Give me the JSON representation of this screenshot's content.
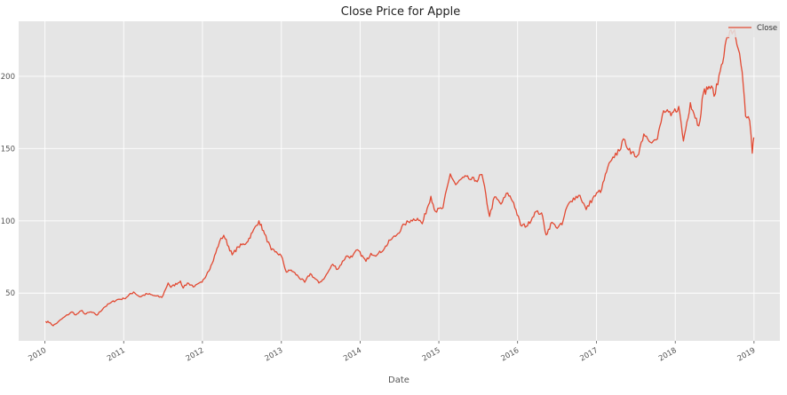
{
  "chart_data": {
    "type": "line",
    "title": "Close Price for Apple",
    "xlabel": "Date",
    "ylabel": "",
    "x_ticks": [
      "2010",
      "2011",
      "2012",
      "2013",
      "2014",
      "2015",
      "2016",
      "2017",
      "2018",
      "2019"
    ],
    "y_ticks": [
      50,
      100,
      150,
      200
    ],
    "xlim": [
      "2009-09-01",
      "2019-05-01"
    ],
    "ylim": [
      17,
      238
    ],
    "grid": true,
    "legend_position": "top-right",
    "colors": {
      "series": "#e24a33",
      "background": "#e5e5e5",
      "grid": "#ffffff"
    },
    "series": [
      {
        "name": "Close",
        "x": [
          "2010-01-04",
          "2010-01-25",
          "2010-02-08",
          "2010-03-01",
          "2010-04-01",
          "2010-05-06",
          "2010-05-25",
          "2010-06-22",
          "2010-07-06",
          "2010-08-02",
          "2010-08-30",
          "2010-10-01",
          "2010-11-01",
          "2010-12-01",
          "2011-01-03",
          "2011-02-16",
          "2011-03-16",
          "2011-04-20",
          "2011-05-16",
          "2011-06-27",
          "2011-07-26",
          "2011-08-08",
          "2011-09-21",
          "2011-10-04",
          "2011-10-24",
          "2011-11-25",
          "2011-12-30",
          "2012-01-25",
          "2012-02-15",
          "2012-03-20",
          "2012-04-09",
          "2012-05-18",
          "2012-06-15",
          "2012-07-24",
          "2012-08-20",
          "2012-09-19",
          "2012-10-15",
          "2012-11-15",
          "2012-12-03",
          "2012-12-31",
          "2013-01-24",
          "2013-02-15",
          "2013-04-19",
          "2013-05-15",
          "2013-06-24",
          "2013-07-22",
          "2013-08-27",
          "2013-09-19",
          "2013-10-28",
          "2013-11-25",
          "2013-12-20",
          "2014-01-28",
          "2014-02-20",
          "2014-03-21",
          "2014-04-24",
          "2014-05-20",
          "2014-06-20",
          "2014-07-25",
          "2014-08-25",
          "2014-09-24",
          "2014-10-16",
          "2014-11-25",
          "2014-12-16",
          "2015-01-20",
          "2015-02-23",
          "2015-03-20",
          "2015-04-27",
          "2015-05-20",
          "2015-06-22",
          "2015-07-20",
          "2015-08-24",
          "2015-09-16",
          "2015-10-16",
          "2015-11-16",
          "2015-12-14",
          "2016-01-15",
          "2016-02-16",
          "2016-03-21",
          "2016-04-21",
          "2016-05-12",
          "2016-06-08",
          "2016-06-27",
          "2016-07-25",
          "2016-08-16",
          "2016-09-16",
          "2016-10-16",
          "2016-11-14",
          "2016-12-15",
          "2017-01-25",
          "2017-02-22",
          "2017-03-24",
          "2017-05-12",
          "2017-06-09",
          "2017-07-10",
          "2017-08-08",
          "2017-09-20",
          "2017-10-10",
          "2017-11-08",
          "2017-12-12",
          "2018-01-17",
          "2018-02-08",
          "2018-03-12",
          "2018-04-20",
          "2018-05-11",
          "2018-06-06",
          "2018-07-06",
          "2018-08-03",
          "2018-08-31",
          "2018-10-03",
          "2018-10-19",
          "2018-11-02",
          "2018-11-12",
          "2018-11-23",
          "2018-12-12",
          "2018-12-24",
          "2018-12-31"
        ],
        "values": [
          30.5,
          29.6,
          27.5,
          29.8,
          33.5,
          37.0,
          35.0,
          38.0,
          35.5,
          37.0,
          34.8,
          40.0,
          43.3,
          45.5,
          46.2,
          50.8,
          47.5,
          49.5,
          48.5,
          47.0,
          57.0,
          54.0,
          58.4,
          53.5,
          57.0,
          54.5,
          57.5,
          64.5,
          70.5,
          85.5,
          90.0,
          76.5,
          82.0,
          85.0,
          92.0,
          100.0,
          91.0,
          80.0,
          78.5,
          76.0,
          64.5,
          66.0,
          57.5,
          63.5,
          57.0,
          61.0,
          70.0,
          66.5,
          75.5,
          75.0,
          80.0,
          72.0,
          77.5,
          76.5,
          81.0,
          86.6,
          90.3,
          97.6,
          100.5,
          101.8,
          98.0,
          117.0,
          106.5,
          109.0,
          132.5,
          125.0,
          130.0,
          129.0,
          127.8,
          132.0,
          103.0,
          116.5,
          111.6,
          119.3,
          112.5,
          97.0,
          96.6,
          105.9,
          105.5,
          90.3,
          99.0,
          95.6,
          97.3,
          109.4,
          115.8,
          117.6,
          107.8,
          115.8,
          121.9,
          137.1,
          143.7,
          156.1,
          146.2,
          145.1,
          160.1,
          155.0,
          156.6,
          176.2,
          172.7,
          179.1,
          155.2,
          181.7,
          165.7,
          188.2,
          193.0,
          187.9,
          207.9,
          227.6,
          232.0,
          219.3,
          207.5,
          194.2,
          172.3,
          169.1,
          146.8,
          157.7
        ]
      }
    ]
  }
}
